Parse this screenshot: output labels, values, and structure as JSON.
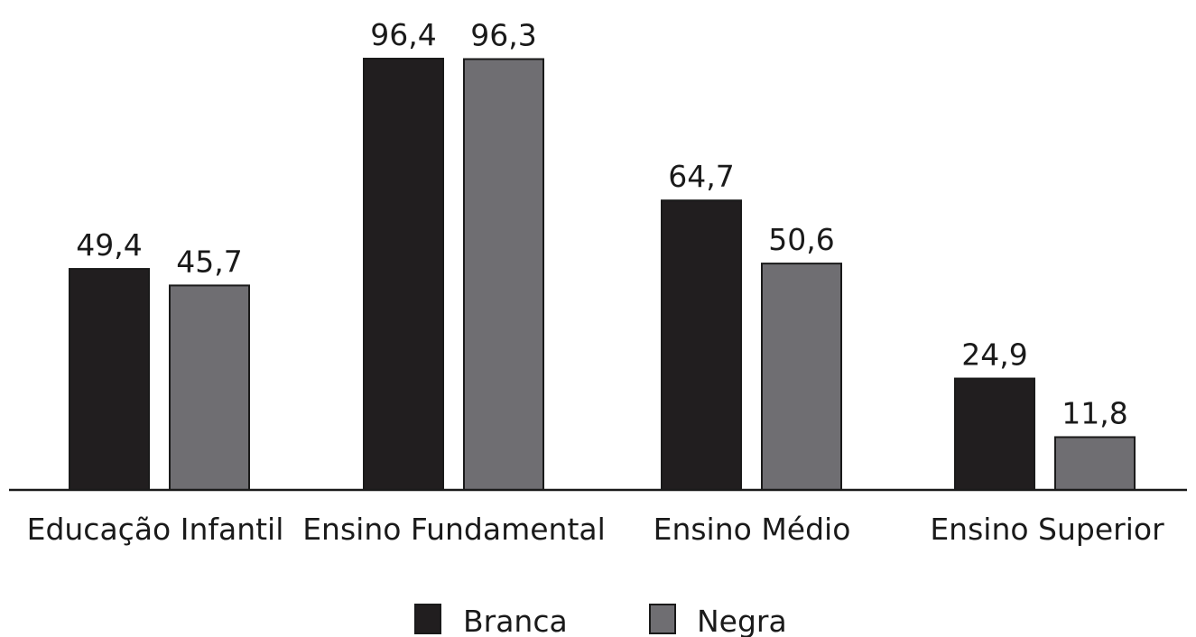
{
  "chart_data": {
    "type": "bar",
    "categories": [
      "Educação Infantil",
      "Ensino Fundamental",
      "Ensino Médio",
      "Ensino Superior"
    ],
    "series": [
      {
        "name": "Branca",
        "values": [
          49.4,
          96.4,
          64.7,
          24.9
        ],
        "labels": [
          "49,4",
          "96,4",
          "64,7",
          "24,9"
        ],
        "color": "#211e1f"
      },
      {
        "name": "Negra",
        "values": [
          45.7,
          96.3,
          50.6,
          11.8
        ],
        "labels": [
          "45,7",
          "96,3",
          "50,6",
          "11,8"
        ],
        "color": "#6f6e72"
      }
    ],
    "ylim": [
      0,
      100
    ],
    "grid": false,
    "legend_position": "bottom-center"
  }
}
